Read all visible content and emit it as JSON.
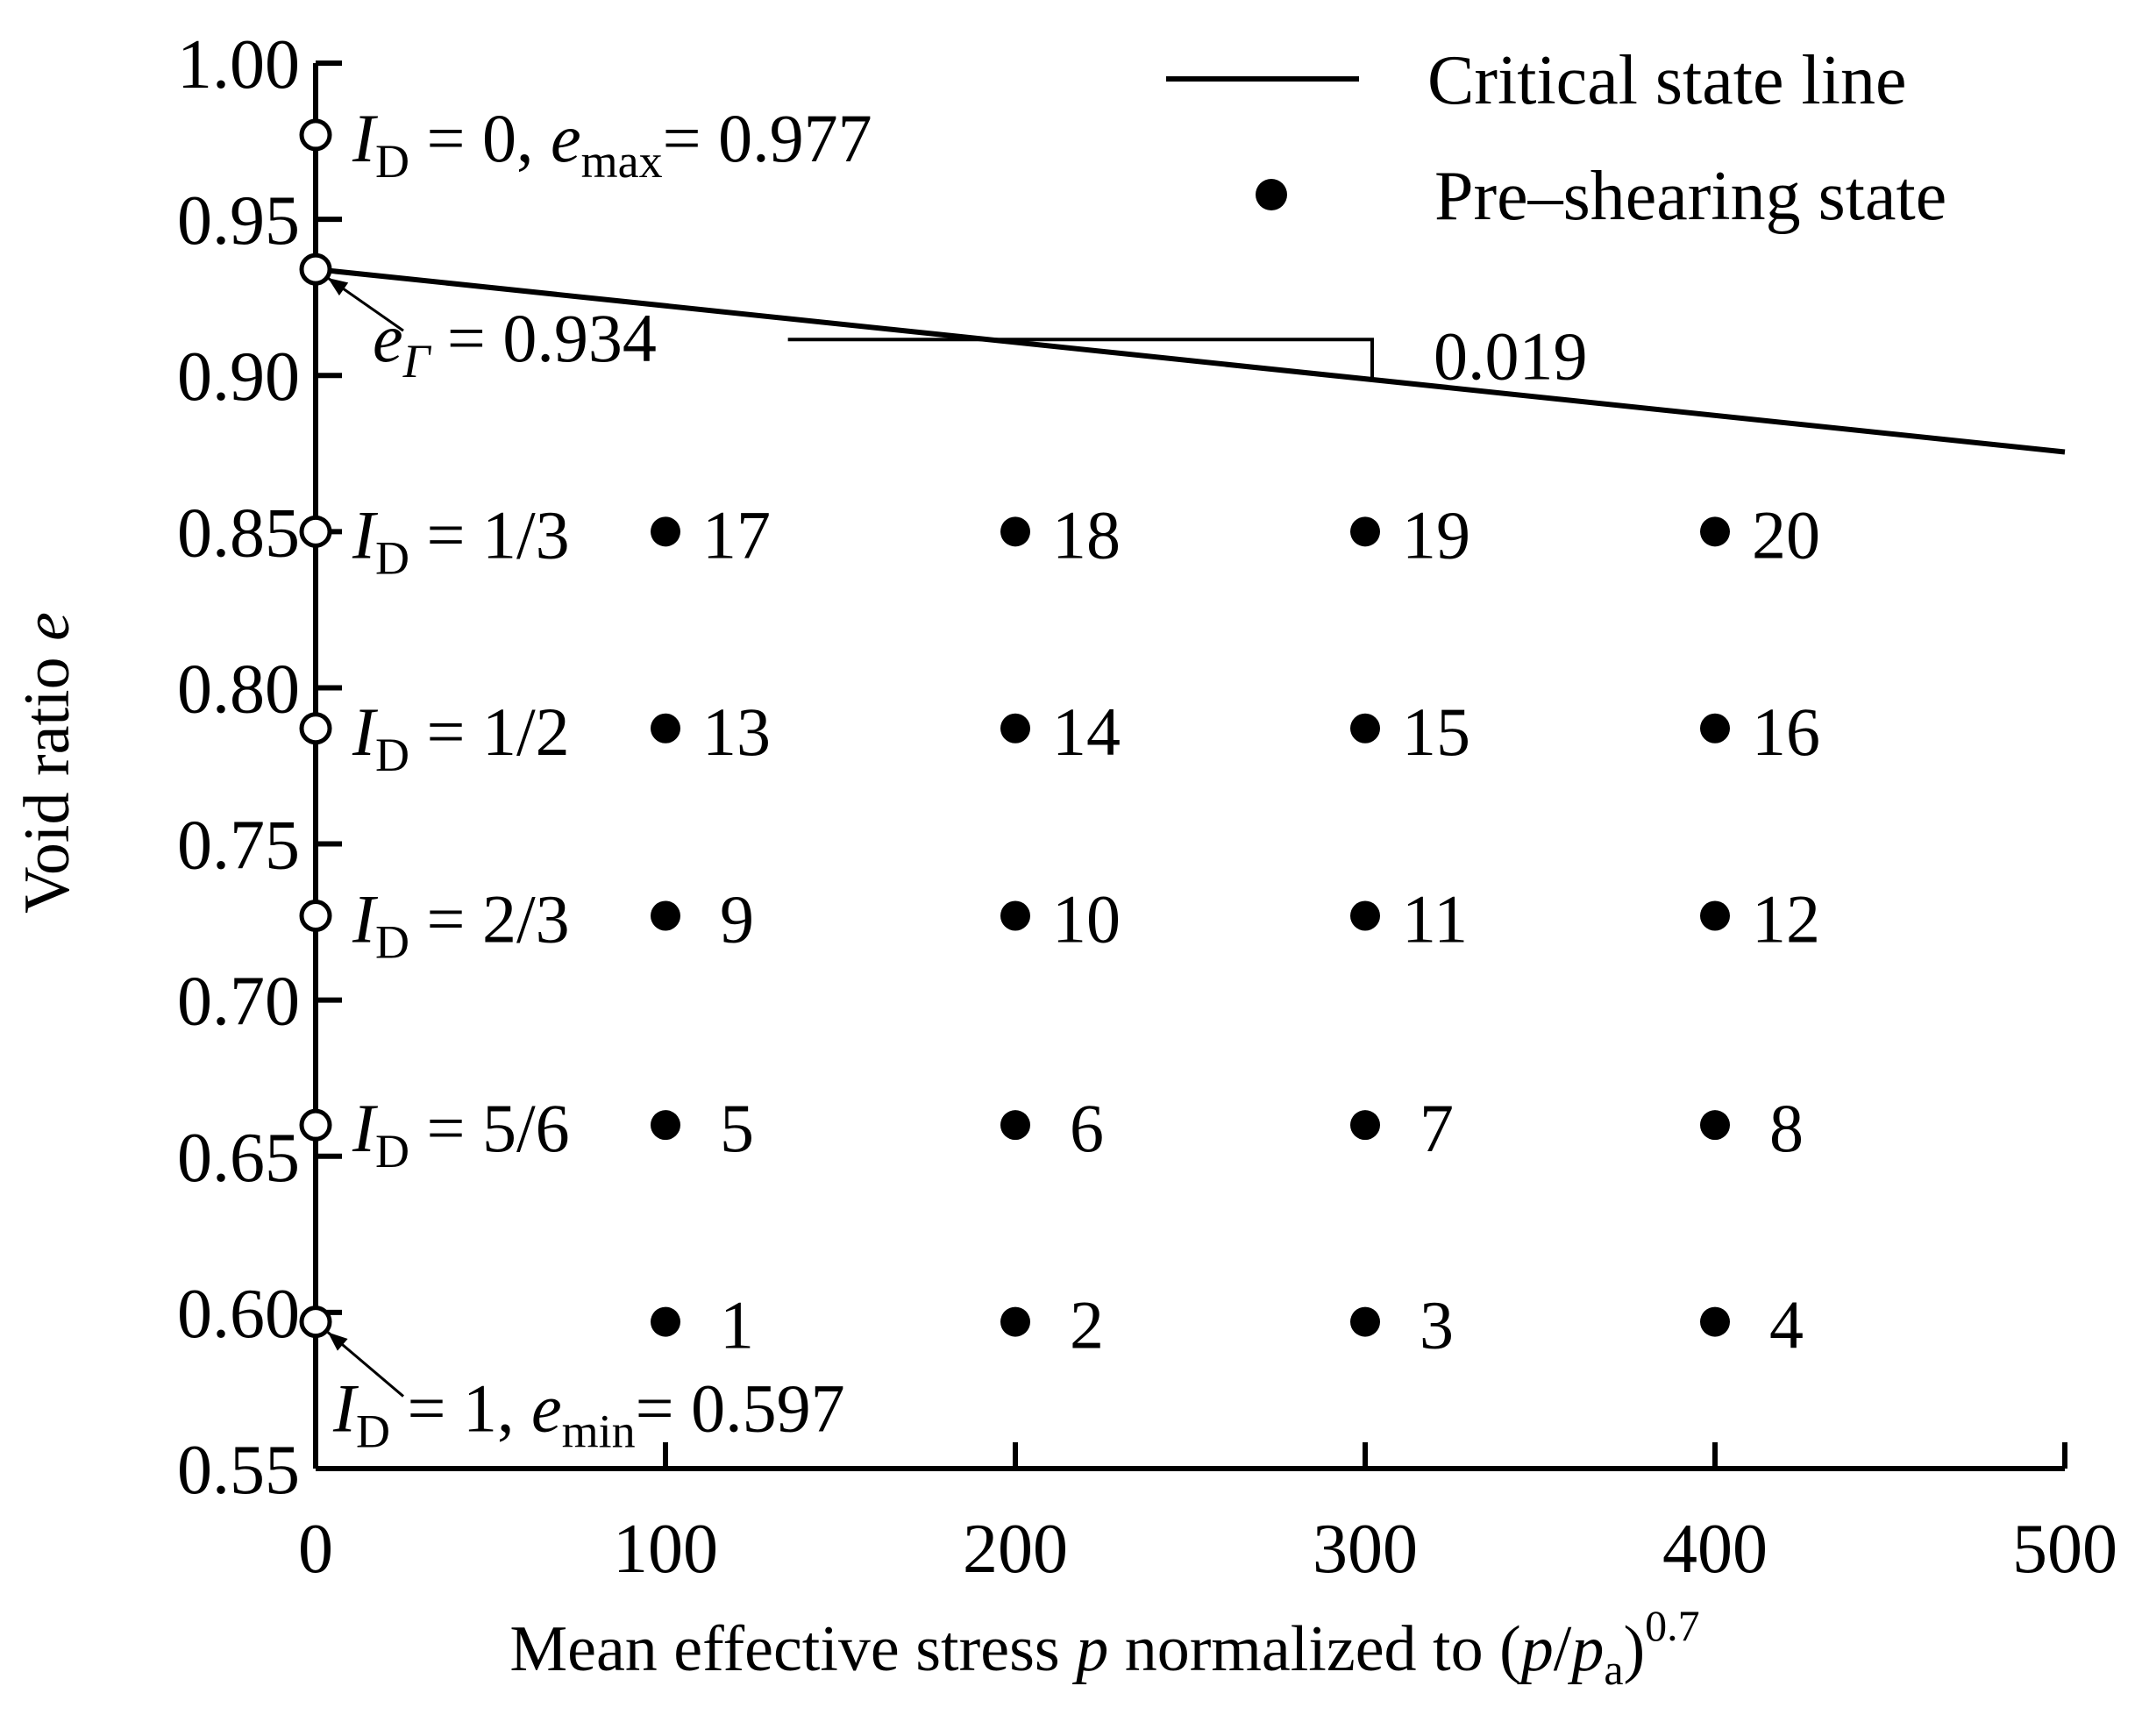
{
  "chart_data": {
    "type": "scatter",
    "xlabel": {
      "main": "Mean effective stress",
      "var": "p",
      "mid": "normalized to (",
      "frac_num": "p",
      "slash": "/",
      "frac_den": "p",
      "den_sub": "a",
      "close": ")",
      "exp": "0.7"
    },
    "ylabel": {
      "main": "Void ratio",
      "var": "e"
    },
    "xlim": [
      0,
      500
    ],
    "ylim": [
      0.55,
      1.0
    ],
    "x_ticks": [
      0,
      100,
      200,
      300,
      400,
      500
    ],
    "x_tick_labels": [
      "0",
      "100",
      "200",
      "300",
      "400",
      "500"
    ],
    "y_ticks": [
      0.55,
      0.6,
      0.65,
      0.7,
      0.75,
      0.8,
      0.85,
      0.9,
      0.95,
      1.0
    ],
    "y_tick_labels": [
      "0.55",
      "0.60",
      "0.65",
      "0.70",
      "0.75",
      "0.80",
      "0.85",
      "0.90",
      "0.95",
      "1.00"
    ],
    "grid": false,
    "legend": {
      "position": "top-right",
      "entries": [
        {
          "label": "Critical state line",
          "marker": "line"
        },
        {
          "label": "Pre–shearing state",
          "marker": "filled-circle"
        }
      ]
    },
    "critical_state_line": {
      "name": "Critical state line",
      "x": [
        0,
        500
      ],
      "y": [
        0.934,
        0.8755
      ]
    },
    "slope_triangle": {
      "x_start": 135,
      "x_end": 302,
      "y_top": 0.9115,
      "label": "0.019"
    },
    "reference_points": [
      {
        "x": 0,
        "y": 0.977,
        "label": {
          "var": "I",
          "sub": "D",
          "text": " = 0, ",
          "var2": "e",
          "sub2": "max",
          "text2": "= 0.977"
        }
      },
      {
        "x": 0,
        "y": 0.934,
        "label": {
          "var": "e",
          "sub": "Γ",
          "text": " = 0.934"
        }
      },
      {
        "x": 0,
        "y": 0.85,
        "label": {
          "var": "I",
          "sub": "D",
          "text": " = 1/3"
        }
      },
      {
        "x": 0,
        "y": 0.787,
        "label": {
          "var": "I",
          "sub": "D",
          "text": " = 1/2"
        }
      },
      {
        "x": 0,
        "y": 0.727,
        "label": {
          "var": "I",
          "sub": "D",
          "text": " = 2/3"
        }
      },
      {
        "x": 0,
        "y": 0.66,
        "label": {
          "var": "I",
          "sub": "D",
          "text": " = 5/6"
        }
      },
      {
        "x": 0,
        "y": 0.597,
        "label": {
          "var": "I",
          "sub": "D",
          "text": " = 1, ",
          "var2": "e",
          "sub2": "min",
          "text2": "= 0.597"
        }
      }
    ],
    "series": [
      {
        "name": "Pre–shearing state",
        "points": [
          {
            "x": 100,
            "y": 0.597,
            "label": "1"
          },
          {
            "x": 200,
            "y": 0.597,
            "label": "2"
          },
          {
            "x": 300,
            "y": 0.597,
            "label": "3"
          },
          {
            "x": 400,
            "y": 0.597,
            "label": "4"
          },
          {
            "x": 100,
            "y": 0.66,
            "label": "5"
          },
          {
            "x": 200,
            "y": 0.66,
            "label": "6"
          },
          {
            "x": 300,
            "y": 0.66,
            "label": "7"
          },
          {
            "x": 400,
            "y": 0.66,
            "label": "8"
          },
          {
            "x": 100,
            "y": 0.727,
            "label": "9"
          },
          {
            "x": 200,
            "y": 0.727,
            "label": "10"
          },
          {
            "x": 300,
            "y": 0.727,
            "label": "11"
          },
          {
            "x": 400,
            "y": 0.727,
            "label": "12"
          },
          {
            "x": 100,
            "y": 0.787,
            "label": "13"
          },
          {
            "x": 200,
            "y": 0.787,
            "label": "14"
          },
          {
            "x": 300,
            "y": 0.787,
            "label": "15"
          },
          {
            "x": 400,
            "y": 0.787,
            "label": "16"
          },
          {
            "x": 100,
            "y": 0.85,
            "label": "17"
          },
          {
            "x": 200,
            "y": 0.85,
            "label": "18"
          },
          {
            "x": 300,
            "y": 0.85,
            "label": "19"
          },
          {
            "x": 400,
            "y": 0.85,
            "label": "20"
          }
        ]
      }
    ]
  }
}
